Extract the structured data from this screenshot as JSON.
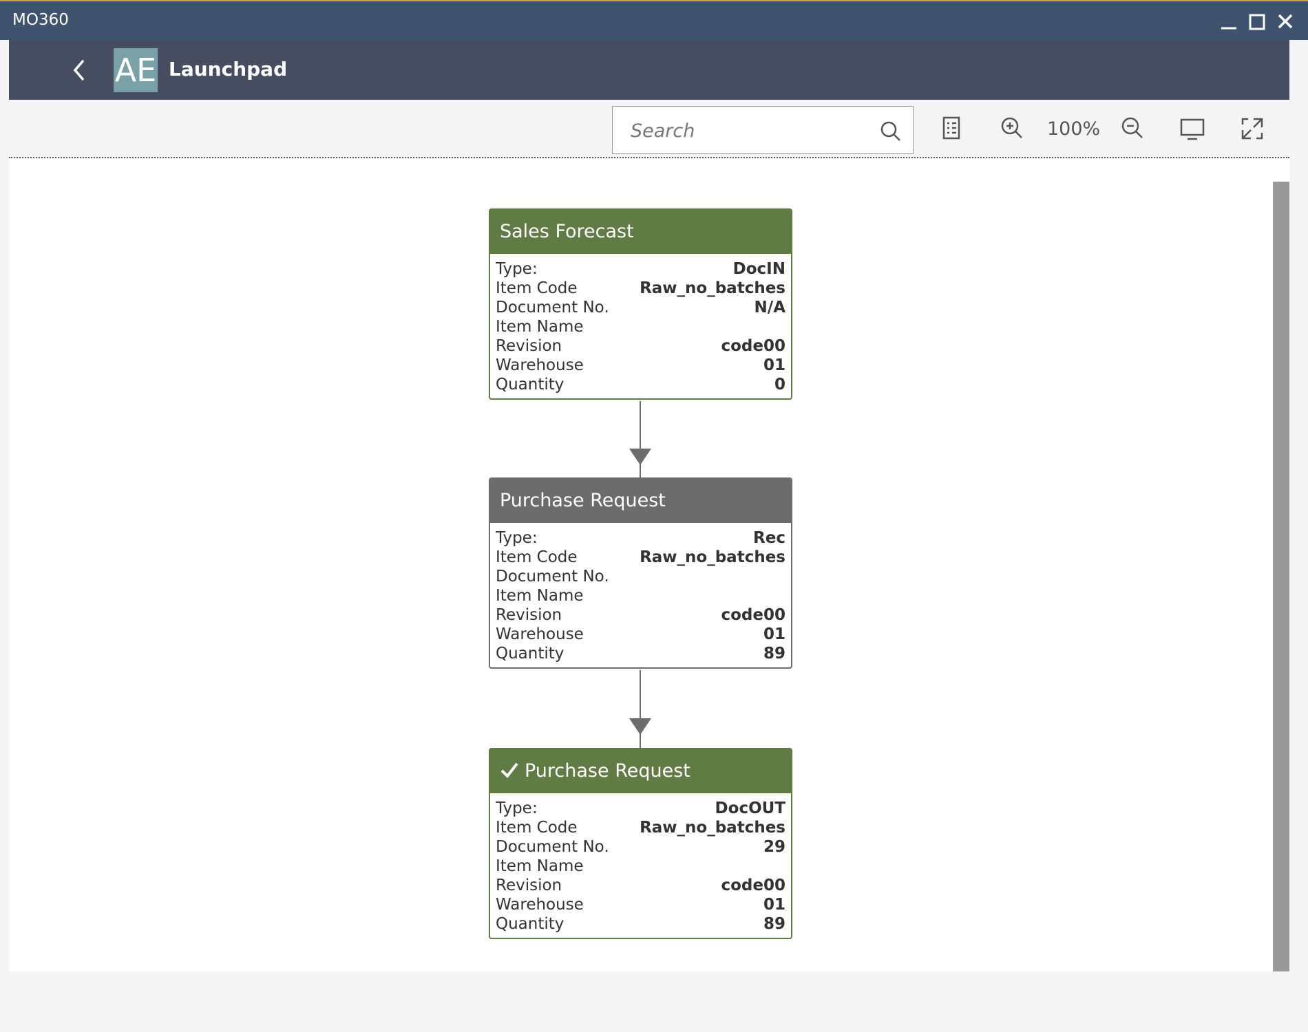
{
  "window": {
    "title": "MO360"
  },
  "header": {
    "logo": "AE",
    "title": "Launchpad"
  },
  "toolbar": {
    "search_placeholder": "Search",
    "zoom": "100%"
  },
  "nodes": [
    {
      "title": "Sales Forecast",
      "status": "green",
      "checked": false,
      "fields": [
        {
          "label": "Type:",
          "value": "DocIN"
        },
        {
          "label": "Item Code",
          "value": "Raw_no_batches"
        },
        {
          "label": "Document No.",
          "value": "N/A"
        },
        {
          "label": "Item Name"
        },
        {
          "label": "Revision",
          "value": "code00"
        },
        {
          "label": "Warehouse",
          "value": "01"
        },
        {
          "label": "Quantity",
          "value": "0"
        }
      ]
    },
    {
      "title": "Purchase Request",
      "status": "gray",
      "checked": false,
      "fields": [
        {
          "label": "Type:",
          "value": "Rec"
        },
        {
          "label": "Item Code",
          "value": "Raw_no_batches"
        },
        {
          "label": "Document No."
        },
        {
          "label": "Item Name"
        },
        {
          "label": "Revision",
          "value": "code00"
        },
        {
          "label": "Warehouse",
          "value": "01"
        },
        {
          "label": "Quantity",
          "value": "89"
        }
      ]
    },
    {
      "title": "Purchase Request",
      "status": "green",
      "checked": true,
      "fields": [
        {
          "label": "Type:",
          "value": "DocOUT"
        },
        {
          "label": "Item Code",
          "value": "Raw_no_batches"
        },
        {
          "label": "Document No.",
          "value": "29"
        },
        {
          "label": "Item Name"
        },
        {
          "label": "Revision",
          "value": "code00"
        },
        {
          "label": "Warehouse",
          "value": "01"
        },
        {
          "label": "Quantity",
          "value": "89"
        }
      ]
    }
  ]
}
